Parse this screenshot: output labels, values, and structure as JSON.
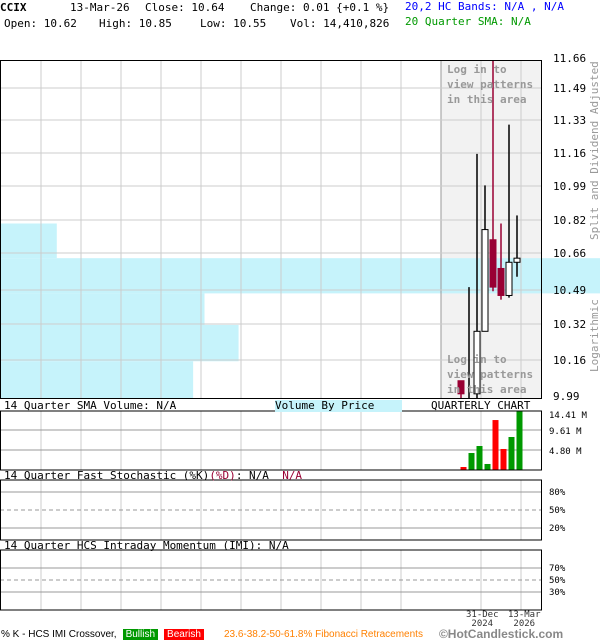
{
  "header": {
    "symbol": "CCIX",
    "date": "13-Mar-26",
    "close": "Close: 10.64",
    "change": "Change: 0.01 {+0.1 %}",
    "open": "Open: 10.62",
    "high": "High: 10.85",
    "low": "Low: 10.55",
    "vol": "Vol: 14,410,826",
    "bands": "20,2 HC Bands: N/A , N/A",
    "sma": "20 Quarter SMA: N/A"
  },
  "overlay": {
    "login_top": [
      "Log in to",
      "view patterns",
      "in this area"
    ],
    "login_bottom": [
      "Log in to",
      "view patterns",
      "in this area"
    ]
  },
  "axis_side": {
    "adjusted": "Split and Dividend Adjusted",
    "scale": "Logarithmic"
  },
  "colors": {
    "up": "#ffffff",
    "down": "#990033",
    "vol_up": "#009900",
    "vol_down": "#ff0000",
    "vbp": "#c6f3fb",
    "shade": "#f2f2f2",
    "bands": "#0000ff",
    "sma": "#009900",
    "fib": "#ff8000"
  },
  "panels": {
    "volume_label": "14 Quarter SMA Volume: N/A",
    "vbp_label": "Volume By Price",
    "chart_type": "QUARTERLY CHART",
    "stoch_label": "14 Quarter Fast Stochastic (%K)",
    "stoch_d": "(%D)",
    "stoch_k_val": ": N/A",
    "stoch_d_val": "N/A",
    "imi_label": "14 Quarter HCS Intraday Momentum (IMI): N/A",
    "stoch_ticks": [
      "80%",
      "50%",
      "20%"
    ],
    "imi_ticks": [
      "70%",
      "50%",
      "30%"
    ]
  },
  "dates": [
    {
      "d": "31-Dec",
      "y": "2024"
    },
    {
      "d": "13-Mar",
      "y": "2026"
    }
  ],
  "footer": {
    "crossover": "% K - HCS IMI Crossover,",
    "bullish": "Bullish",
    "bearish": "Bearish",
    "fib": "23.6-38.2-50-61.8% Fibonacci Retracements",
    "brand": "©HotCandlestick.com"
  },
  "chart_data": [
    {
      "type": "candlestick",
      "title": "",
      "scale": "log",
      "ylim": [
        9.99,
        11.66
      ],
      "yticks": [
        "11.66",
        "11.49",
        "11.33",
        "11.16",
        "10.99",
        "10.82",
        "10.66",
        "10.49",
        "10.32",
        "10.16",
        "9.99"
      ],
      "grid": true,
      "candles": [
        {
          "o": 10.06,
          "h": 10.06,
          "l": 9.98,
          "c": 10.0
        },
        {
          "o": 9.9,
          "h": 10.5,
          "l": 9.8,
          "c": 9.95
        },
        {
          "o": 10.0,
          "h": 11.16,
          "l": 9.98,
          "c": 10.29
        },
        {
          "o": 10.29,
          "h": 11.0,
          "l": 10.29,
          "c": 10.78
        },
        {
          "o": 10.73,
          "h": 11.7,
          "l": 10.48,
          "c": 10.5
        },
        {
          "o": 10.59,
          "h": 10.81,
          "l": 10.44,
          "c": 10.46
        },
        {
          "o": 10.46,
          "h": 11.31,
          "l": 10.45,
          "c": 10.62
        },
        {
          "o": 10.62,
          "h": 10.85,
          "l": 10.55,
          "c": 10.64
        }
      ],
      "volume_by_price": [
        {
          "from": 10.64,
          "to": 10.81,
          "relative": 0.05
        },
        {
          "from": 10.47,
          "to": 10.64,
          "relative": 1.0
        },
        {
          "from": 10.32,
          "to": 10.47,
          "relative": 0.18
        },
        {
          "from": 10.15,
          "to": 10.32,
          "relative": 0.21
        },
        {
          "from": 9.98,
          "to": 10.15,
          "relative": 0.17
        }
      ]
    },
    {
      "type": "bar",
      "title": "14 Quarter SMA Volume: N/A",
      "ylim": [
        0,
        14.41
      ],
      "yticks": [
        "14.41 M",
        "9.61 M",
        "4.80 M"
      ],
      "unit": "M",
      "values": [
        0.73,
        4.15,
        5.86,
        1.47,
        12.2,
        5.13,
        8.06,
        14.41
      ],
      "direction": [
        "down",
        "up",
        "up",
        "up",
        "down",
        "down",
        "up",
        "up"
      ]
    }
  ]
}
